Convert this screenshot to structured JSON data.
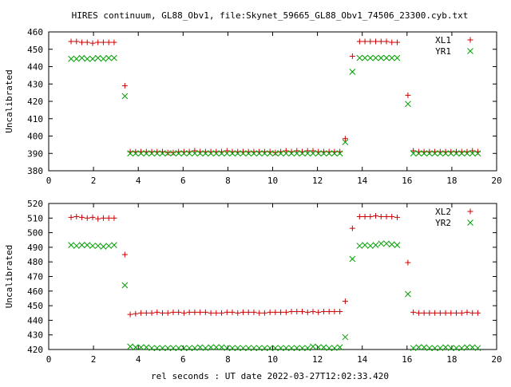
{
  "chart_data": {
    "title": "HIRES continuum, GL88_Obv1, file:Skynet_59665_GL88_Obv1_74506_23300.cyb.txt",
    "xlabel": "rel seconds : UT date 2022-03-27T12:02:33.420",
    "colors": {
      "red": "#cc0000",
      "green": "#00a000"
    },
    "panels": [
      {
        "type": "scatter",
        "ylabel": "Uncalibrated",
        "xlim": [
          0,
          20
        ],
        "ylim": [
          380,
          460
        ],
        "xticks": [
          "0",
          "2",
          "4",
          "6",
          "8",
          "10",
          "12",
          "14",
          "16",
          "18",
          "20"
        ],
        "yticks": [
          "380",
          "390",
          "400",
          "410",
          "420",
          "430",
          "440",
          "450",
          "460"
        ],
        "legend": "top-right",
        "series": [
          {
            "name": "XL1",
            "marker": "plus",
            "color": "#cc0000",
            "x": [
              1.0,
              1.24,
              1.48,
              1.72,
              1.96,
              2.2,
              2.44,
              2.68,
              2.92,
              3.4,
              3.64,
              3.88,
              4.12,
              4.36,
              4.6,
              4.84,
              5.08,
              5.32,
              5.56,
              5.8,
              6.04,
              6.28,
              6.52,
              6.76,
              7.0,
              7.24,
              7.48,
              7.72,
              7.96,
              8.2,
              8.44,
              8.68,
              8.92,
              9.16,
              9.4,
              9.64,
              9.88,
              10.12,
              10.36,
              10.6,
              10.84,
              11.08,
              11.32,
              11.56,
              11.8,
              12.04,
              12.28,
              12.52,
              12.76,
              13.0,
              13.24,
              13.56,
              13.88,
              14.12,
              14.36,
              14.6,
              14.84,
              15.08,
              15.32,
              15.56,
              16.04,
              16.28,
              16.52,
              16.76,
              17.0,
              17.24,
              17.48,
              17.72,
              17.96,
              18.2,
              18.44,
              18.68,
              18.92,
              19.16
            ],
            "y": [
              454.5,
              454.5,
              454,
              454,
              453.5,
              454,
              454,
              454,
              454,
              429,
              391,
              391,
              391,
              391,
              391,
              391,
              391,
              390.5,
              390.5,
              391,
              391,
              391,
              391.5,
              391,
              391,
              391,
              391,
              391,
              391.5,
              391,
              391,
              391,
              391,
              391,
              391,
              391,
              391,
              390.5,
              391,
              391.5,
              391,
              391.5,
              391,
              391.5,
              391.5,
              391,
              391,
              391,
              391,
              391,
              398.5,
              446,
              454.5,
              454.5,
              454.5,
              454.5,
              454.5,
              454.5,
              454,
              454,
              423.5,
              391.5,
              391,
              391,
              391,
              391,
              391,
              391,
              391,
              391,
              391,
              391,
              391.5,
              391
            ]
          },
          {
            "name": "YR1",
            "marker": "cross",
            "color": "#00a000",
            "x": [
              1.0,
              1.24,
              1.48,
              1.72,
              1.96,
              2.2,
              2.44,
              2.68,
              2.92,
              3.4,
              3.64,
              3.88,
              4.12,
              4.36,
              4.6,
              4.84,
              5.08,
              5.32,
              5.56,
              5.8,
              6.04,
              6.28,
              6.52,
              6.76,
              7.0,
              7.24,
              7.48,
              7.72,
              7.96,
              8.2,
              8.44,
              8.68,
              8.92,
              9.16,
              9.4,
              9.64,
              9.88,
              10.12,
              10.36,
              10.6,
              10.84,
              11.08,
              11.32,
              11.56,
              11.8,
              12.04,
              12.28,
              12.52,
              12.76,
              13.0,
              13.24,
              13.56,
              13.88,
              14.12,
              14.36,
              14.6,
              14.84,
              15.08,
              15.32,
              15.56,
              16.04,
              16.28,
              16.52,
              16.76,
              17.0,
              17.24,
              17.48,
              17.72,
              17.96,
              18.2,
              18.44,
              18.68,
              18.92,
              19.16
            ],
            "y": [
              444.5,
              444.5,
              445,
              444.5,
              444.5,
              445,
              444.5,
              445,
              445,
              423,
              390,
              390,
              390,
              390,
              390,
              390,
              390,
              390,
              390,
              390,
              390,
              390,
              390,
              390,
              390,
              390,
              390,
              390,
              390,
              390,
              390,
              390,
              390,
              390,
              390,
              390,
              390,
              390,
              390,
              390,
              390,
              390,
              390,
              390,
              390,
              390,
              390,
              390,
              390,
              390,
              396.5,
              437,
              445,
              445,
              445,
              445,
              445,
              445,
              445,
              445,
              418.5,
              390,
              390,
              390,
              390,
              390,
              390,
              390,
              390,
              390,
              390,
              390,
              390,
              390
            ]
          }
        ]
      },
      {
        "type": "scatter",
        "ylabel": "Uncalibrated",
        "xlim": [
          0,
          20
        ],
        "ylim": [
          420,
          520
        ],
        "xticks": [
          "0",
          "2",
          "4",
          "6",
          "8",
          "10",
          "12",
          "14",
          "16",
          "18",
          "20"
        ],
        "yticks": [
          "420",
          "430",
          "440",
          "450",
          "460",
          "470",
          "480",
          "490",
          "500",
          "510",
          "520"
        ],
        "legend": "top-right",
        "series": [
          {
            "name": "XL2",
            "marker": "plus",
            "color": "#cc0000",
            "x": [
              1.0,
              1.24,
              1.48,
              1.72,
              1.96,
              2.2,
              2.44,
              2.68,
              2.92,
              3.4,
              3.64,
              3.88,
              4.12,
              4.36,
              4.6,
              4.84,
              5.08,
              5.32,
              5.56,
              5.8,
              6.04,
              6.28,
              6.52,
              6.76,
              7.0,
              7.24,
              7.48,
              7.72,
              7.96,
              8.2,
              8.44,
              8.68,
              8.92,
              9.16,
              9.4,
              9.64,
              9.88,
              10.12,
              10.36,
              10.6,
              10.84,
              11.08,
              11.32,
              11.56,
              11.8,
              12.04,
              12.28,
              12.52,
              12.76,
              13.0,
              13.24,
              13.56,
              13.88,
              14.12,
              14.36,
              14.6,
              14.84,
              15.08,
              15.32,
              15.56,
              16.04,
              16.28,
              16.52,
              16.76,
              17.0,
              17.24,
              17.48,
              17.72,
              17.96,
              18.2,
              18.44,
              18.68,
              18.92,
              19.16
            ],
            "y": [
              510.5,
              511,
              510.5,
              510,
              510.5,
              509.5,
              510,
              510,
              510,
              485,
              444,
              444.5,
              445,
              445,
              445,
              445.5,
              445,
              445,
              445.5,
              445.5,
              445,
              445.5,
              445.5,
              445.5,
              445.5,
              445,
              445,
              445,
              445.5,
              445.5,
              445,
              445.5,
              445.5,
              445.5,
              445,
              445,
              445.5,
              445.5,
              445.5,
              445.5,
              446,
              446,
              446,
              445.5,
              446,
              445.5,
              446,
              446,
              446,
              446,
              453,
              503,
              511,
              511,
              511,
              511.5,
              511,
              511,
              511,
              510.5,
              479.5,
              445.5,
              445,
              445,
              445,
              445,
              445,
              445,
              445,
              445,
              445,
              445.5,
              445,
              445
            ]
          },
          {
            "name": "YR2",
            "marker": "cross",
            "color": "#00a000",
            "x": [
              1.0,
              1.24,
              1.48,
              1.72,
              1.96,
              2.2,
              2.44,
              2.68,
              2.92,
              3.4,
              3.64,
              3.88,
              4.12,
              4.36,
              4.6,
              4.84,
              5.08,
              5.32,
              5.56,
              5.8,
              6.04,
              6.28,
              6.52,
              6.76,
              7.0,
              7.24,
              7.48,
              7.72,
              7.96,
              8.2,
              8.44,
              8.68,
              8.92,
              9.16,
              9.4,
              9.64,
              9.88,
              10.12,
              10.36,
              10.6,
              10.84,
              11.08,
              11.32,
              11.56,
              11.8,
              12.04,
              12.28,
              12.52,
              12.76,
              13.0,
              13.24,
              13.56,
              13.88,
              14.12,
              14.36,
              14.6,
              14.84,
              15.08,
              15.32,
              15.56,
              16.04,
              16.28,
              16.52,
              16.76,
              17.0,
              17.24,
              17.48,
              17.72,
              17.96,
              18.2,
              18.44,
              18.68,
              18.92,
              19.16
            ],
            "y": [
              491.5,
              491,
              491.5,
              491.5,
              491,
              491,
              490.5,
              491,
              491.5,
              464,
              422,
              421.5,
              421.5,
              421.5,
              421,
              421,
              421,
              421,
              421,
              421,
              421,
              421,
              421,
              421.5,
              421,
              421.5,
              421.5,
              421.5,
              421,
              421,
              421,
              421,
              421,
              421,
              421,
              421,
              421,
              421,
              421,
              421,
              421,
              421,
              421,
              421,
              422,
              421.5,
              421.5,
              421,
              421,
              421.5,
              428.5,
              482,
              491,
              491.5,
              491,
              491.5,
              492.5,
              492.5,
              492,
              491.5,
              458,
              421,
              421.5,
              421.5,
              421,
              421,
              421,
              421.5,
              421,
              421,
              421,
              421.5,
              421.5,
              421
            ]
          }
        ]
      }
    ]
  }
}
